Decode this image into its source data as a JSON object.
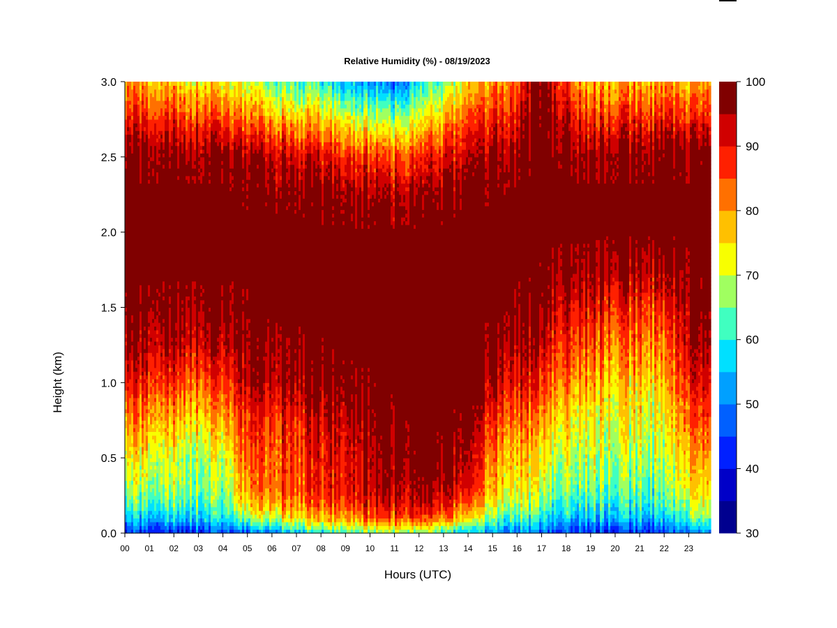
{
  "chart_data": {
    "type": "heatmap",
    "title": "Relative Humidity (%) - 08/19/2023",
    "xlabel": "Hours (UTC)",
    "ylabel": "Height (km)",
    "xlim": [
      0,
      23.9
    ],
    "ylim": [
      0,
      3.0
    ],
    "x_tick_labels": [
      "00",
      "01",
      "02",
      "03",
      "04",
      "05",
      "06",
      "07",
      "08",
      "09",
      "10",
      "11",
      "12",
      "13",
      "14",
      "15",
      "16",
      "17",
      "18",
      "19",
      "20",
      "21",
      "22",
      "23"
    ],
    "y_tick_labels": [
      "0.0",
      "0.5",
      "1.0",
      "1.5",
      "2.0",
      "2.5",
      "3.0"
    ],
    "y_tick_values": [
      0,
      0.5,
      1.0,
      1.5,
      2.0,
      2.5,
      3.0
    ],
    "colorbar": {
      "levels": [
        30,
        35,
        40,
        45,
        50,
        55,
        60,
        65,
        70,
        75,
        80,
        85,
        90,
        95,
        100
      ],
      "colors": [
        "#00008f",
        "#0000c8",
        "#0020ff",
        "#0060ff",
        "#00a0ff",
        "#00e0ff",
        "#40ffc0",
        "#a0ff60",
        "#f8ff00",
        "#ffc000",
        "#ff7000",
        "#ff2000",
        "#d00000",
        "#800000"
      ],
      "tick_labels": [
        "30",
        "40",
        "50",
        "60",
        "70",
        "80",
        "90",
        "100"
      ],
      "tick_values": [
        30,
        40,
        50,
        60,
        70,
        80,
        90,
        100
      ],
      "axis": "right"
    },
    "profile_hours": [
      0,
      1,
      2,
      3,
      4,
      5,
      6,
      7,
      8,
      9,
      10,
      11,
      12,
      13,
      14,
      15,
      16,
      17,
      18,
      19,
      20,
      21,
      22,
      23,
      23.9
    ],
    "profile_heights_km": [
      0,
      0.05,
      0.1,
      0.2,
      0.3,
      0.5,
      0.75,
      1.0,
      1.25,
      1.5,
      1.75,
      2.0,
      2.25,
      2.5,
      2.75,
      3.0
    ],
    "rh_values": [
      [
        42,
        48,
        55,
        62,
        67,
        72,
        80,
        88,
        94,
        98,
        100,
        100,
        100,
        98,
        88,
        78
      ],
      [
        42,
        48,
        55,
        62,
        67,
        72,
        80,
        88,
        94,
        98,
        100,
        100,
        100,
        98,
        88,
        78
      ],
      [
        40,
        48,
        56,
        64,
        68,
        70,
        78,
        87,
        94,
        98,
        100,
        100,
        100,
        98,
        88,
        76
      ],
      [
        44,
        50,
        57,
        63,
        66,
        68,
        76,
        85,
        93,
        98,
        100,
        100,
        100,
        98,
        87,
        75
      ],
      [
        46,
        52,
        58,
        63,
        66,
        70,
        78,
        86,
        93,
        98,
        100,
        100,
        100,
        98,
        86,
        73
      ],
      [
        46,
        56,
        66,
        76,
        80,
        84,
        88,
        94,
        97,
        99,
        100,
        100,
        99,
        96,
        82,
        70
      ],
      [
        50,
        62,
        72,
        80,
        84,
        85,
        88,
        95,
        98,
        100,
        100,
        100,
        99,
        95,
        80,
        65
      ],
      [
        55,
        66,
        75,
        82,
        86,
        87,
        90,
        96,
        99,
        100,
        100,
        100,
        99,
        93,
        78,
        62
      ],
      [
        58,
        68,
        77,
        84,
        88,
        88,
        91,
        97,
        99,
        100,
        100,
        100,
        98,
        90,
        76,
        60
      ],
      [
        62,
        72,
        80,
        87,
        90,
        91,
        94,
        98,
        100,
        100,
        100,
        100,
        97,
        88,
        73,
        55
      ],
      [
        66,
        75,
        84,
        90,
        93,
        95,
        97,
        99,
        100,
        100,
        100,
        100,
        96,
        86,
        70,
        52
      ],
      [
        66,
        76,
        86,
        92,
        95,
        98,
        99,
        100,
        100,
        100,
        100,
        100,
        95,
        85,
        68,
        48
      ],
      [
        66,
        76,
        86,
        93,
        96,
        99,
        100,
        100,
        100,
        100,
        100,
        100,
        96,
        87,
        72,
        58
      ],
      [
        62,
        72,
        82,
        90,
        95,
        98,
        100,
        100,
        100,
        100,
        100,
        100,
        97,
        90,
        78,
        65
      ],
      [
        55,
        64,
        74,
        84,
        90,
        94,
        98,
        100,
        100,
        100,
        100,
        100,
        98,
        93,
        85,
        75
      ],
      [
        52,
        58,
        64,
        72,
        76,
        80,
        86,
        94,
        98,
        100,
        100,
        100,
        99,
        96,
        88,
        80
      ],
      [
        50,
        56,
        62,
        70,
        74,
        78,
        84,
        91,
        96,
        99,
        100,
        100,
        100,
        98,
        92,
        85
      ],
      [
        46,
        52,
        58,
        64,
        68,
        72,
        78,
        86,
        92,
        96,
        99,
        100,
        100,
        100,
        99,
        98
      ],
      [
        44,
        50,
        56,
        62,
        66,
        70,
        76,
        82,
        88,
        93,
        98,
        100,
        100,
        99,
        94,
        86
      ],
      [
        44,
        50,
        56,
        62,
        66,
        70,
        74,
        80,
        86,
        92,
        98,
        100,
        100,
        98,
        88,
        78
      ],
      [
        43,
        48,
        55,
        60,
        64,
        68,
        72,
        76,
        82,
        88,
        96,
        100,
        100,
        98,
        88,
        78
      ],
      [
        43,
        48,
        55,
        60,
        64,
        68,
        72,
        76,
        82,
        88,
        95,
        100,
        100,
        98,
        88,
        78
      ],
      [
        43,
        48,
        54,
        60,
        63,
        67,
        70,
        75,
        80,
        86,
        94,
        100,
        100,
        98,
        88,
        78
      ],
      [
        50,
        56,
        64,
        70,
        74,
        78,
        84,
        90,
        94,
        97,
        99,
        100,
        100,
        98,
        88,
        78
      ],
      [
        50,
        56,
        64,
        70,
        74,
        78,
        84,
        90,
        94,
        97,
        99,
        100,
        100,
        98,
        88,
        78
      ]
    ],
    "grid": false
  }
}
